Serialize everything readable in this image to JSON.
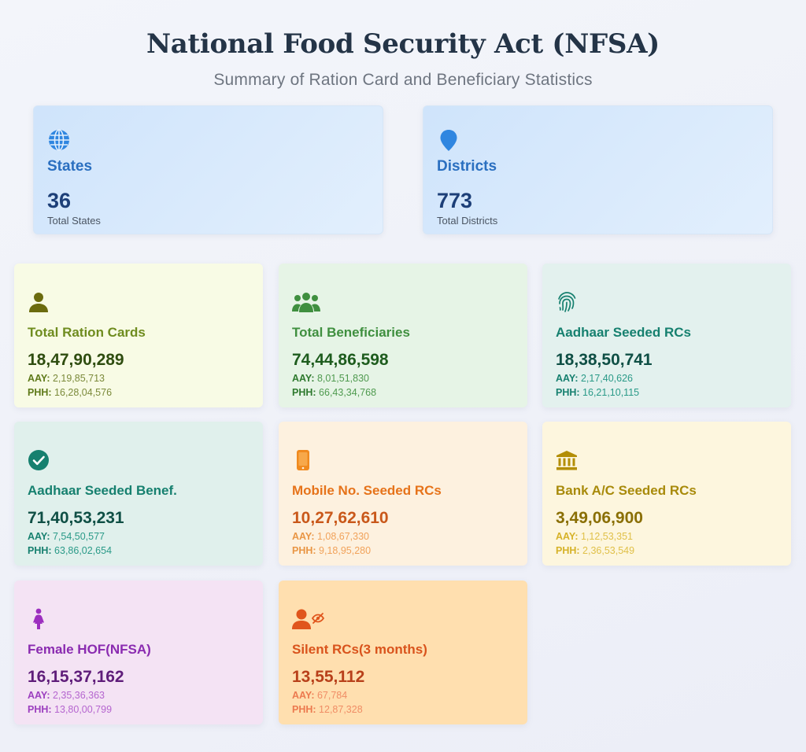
{
  "header": {
    "title": "National Food Security Act (NFSA)",
    "subtitle": "Summary of Ration Card and Beneficiary Statistics"
  },
  "top": {
    "states": {
      "label": "States",
      "value": "36",
      "caption": "Total States",
      "icon": "globe-icon"
    },
    "districts": {
      "label": "Districts",
      "value": "773",
      "caption": "Total Districts",
      "icon": "map-pin-icon"
    }
  },
  "cards": {
    "aay_label": "AAY:",
    "phh_label": "PHH:",
    "ration_cards": {
      "label": "Total Ration Cards",
      "value": "18,47,90,289",
      "aay": "2,19,85,713",
      "phh": "16,28,04,576",
      "icon": "person-icon"
    },
    "beneficiaries": {
      "label": "Total Beneficiaries",
      "value": "74,44,86,598",
      "aay": "8,01,51,830",
      "phh": "66,43,34,768",
      "icon": "users-icon"
    },
    "aadhaar_rcs": {
      "label": "Aadhaar Seeded RCs",
      "value": "18,38,50,741",
      "aay": "2,17,40,626",
      "phh": "16,21,10,115",
      "icon": "fingerprint-icon"
    },
    "aadhaar_benef": {
      "label": "Aadhaar Seeded Benef.",
      "value": "71,40,53,231",
      "aay": "7,54,50,577",
      "phh": "63,86,02,654",
      "icon": "check-circle-icon"
    },
    "mobile_rcs": {
      "label": "Mobile No. Seeded RCs",
      "value": "10,27,62,610",
      "aay": "1,08,67,330",
      "phh": "9,18,95,280",
      "icon": "mobile-icon"
    },
    "bank_rcs": {
      "label": "Bank A/C Seeded RCs",
      "value": "3,49,06,900",
      "aay": "1,12,53,351",
      "phh": "2,36,53,549",
      "icon": "bank-icon"
    },
    "female_hof": {
      "label": "Female HOF(NFSA)",
      "value": "16,15,37,162",
      "aay": "2,35,36,363",
      "phh": "13,80,00,799",
      "icon": "female-icon"
    },
    "silent_rcs": {
      "label": "Silent RCs(3 months)",
      "value": "13,55,112",
      "aay": "67,784",
      "phh": "12,87,328",
      "icon": "user-hidden-icon"
    }
  },
  "colors": {
    "title": "#243447",
    "olive": "#6f8c1f",
    "green": "#3f8f3f",
    "teal": "#16806f",
    "orange": "#e6731a",
    "gold": "#a88a0a",
    "purple": "#8a2bb0",
    "deep_orange": "#d9531c"
  }
}
